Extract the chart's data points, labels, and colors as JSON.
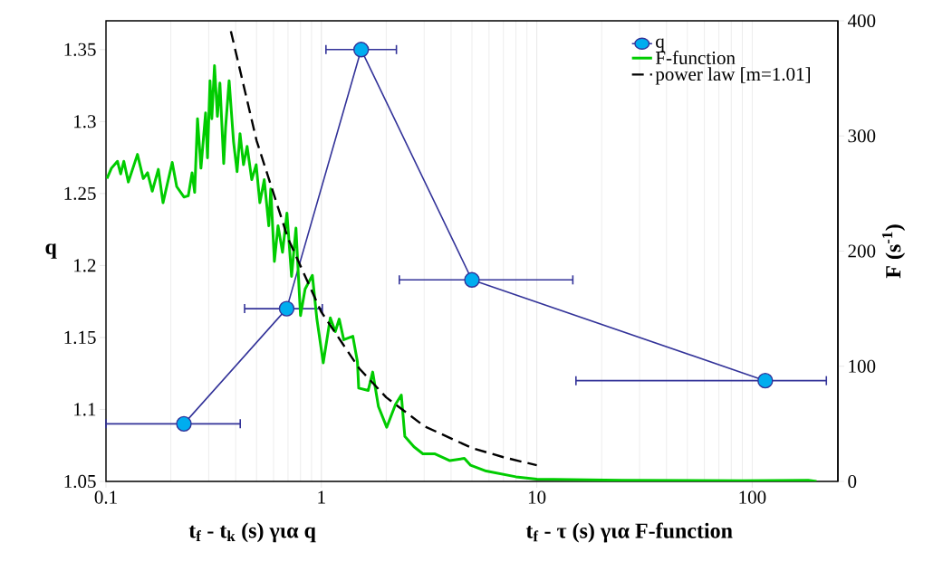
{
  "chart_data": {
    "type": "line",
    "xlabel": "**t$_{f}$ - t$_{k}$ (s) για q**",
    "ylabel": "q",
    "y2label": "F (s$^{-1}$)",
    "annotations": [
      "**t$_{f}$ - τ (s) για F-function**"
    ],
    "log": "x",
    "xlim": [
      0.1,
      250
    ],
    "xticks": [
      0.1,
      1,
      10,
      100
    ],
    "ylim": [
      1.05,
      1.37
    ],
    "yticks": [
      1.05,
      1.1,
      1.15,
      1.2,
      1.25,
      1.3,
      1.35
    ],
    "y2lim": [
      0,
      400
    ],
    "y2ticks": [
      0,
      100,
      200,
      300,
      400
    ],
    "grid": "x",
    "legend": "top right",
    "series": [
      {
        "name": "q",
        "color": "#333399",
        "marker": "circle",
        "x": [
          0.23,
          0.69,
          1.53,
          5.0,
          115
        ],
        "values": [
          1.09,
          1.17,
          1.35,
          1.19,
          1.12
        ],
        "xerrors": [
          [
            0.1,
            0.42
          ],
          [
            0.44,
            1.01
          ],
          [
            1.05,
            2.23
          ],
          [
            2.3,
            14.7
          ],
          [
            15.2,
            221
          ]
        ]
      },
      {
        "name": "F-function",
        "color": "#00cc00",
        "axis": "y2",
        "x": [
          0.101,
          0.106,
          0.113,
          0.117,
          0.121,
          0.127,
          0.14,
          0.149,
          0.156,
          0.164,
          0.175,
          0.184,
          0.203,
          0.213,
          0.23,
          0.241,
          0.251,
          0.258,
          0.266,
          0.276,
          0.29,
          0.296,
          0.304,
          0.31,
          0.319,
          0.329,
          0.338,
          0.352,
          0.359,
          0.373,
          0.391,
          0.406,
          0.419,
          0.435,
          0.452,
          0.475,
          0.498,
          0.518,
          0.543,
          0.57,
          0.582,
          0.605,
          0.629,
          0.66,
          0.692,
          0.727,
          0.762,
          0.785,
          0.8,
          0.84,
          0.908,
          0.953,
          1.02,
          1.1,
          1.16,
          1.21,
          1.27,
          1.4,
          1.47,
          1.49,
          1.65,
          1.73,
          1.84,
          2.01,
          2.21,
          2.35,
          2.44,
          2.69,
          2.96,
          3.35,
          3.95,
          4.61,
          4.93,
          5.82,
          8.0,
          10,
          24.8,
          90,
          182,
          199
        ],
        "values": [
          263,
          272,
          278,
          267,
          278,
          260,
          284,
          263,
          268,
          252,
          271,
          242,
          277,
          256,
          247,
          248,
          268,
          251,
          315,
          272,
          320,
          281,
          348,
          315,
          361,
          317,
          346,
          276,
          307,
          348,
          295,
          269,
          302,
          275,
          291,
          262,
          275,
          242,
          262,
          222,
          254,
          191,
          222,
          199,
          233,
          178,
          220,
          173,
          144,
          167,
          179,
          141,
          103,
          142,
          130,
          141,
          123,
          126,
          104,
          81,
          79,
          95,
          65,
          47,
          67,
          75,
          39,
          30,
          24,
          24,
          18,
          20,
          14,
          9,
          4,
          2,
          1,
          0.5,
          1,
          0
        ]
      },
      {
        "name": "power law [m=1.01]",
        "color": "#000000",
        "axis": "y2",
        "line_style": "dashed",
        "x": [
          0.38,
          0.5,
          0.7,
          1,
          1.5,
          2,
          3,
          5,
          7,
          10
        ],
        "values": [
          391,
          296,
          211,
          147,
          98,
          73,
          48,
          29,
          21,
          14
        ]
      }
    ]
  }
}
